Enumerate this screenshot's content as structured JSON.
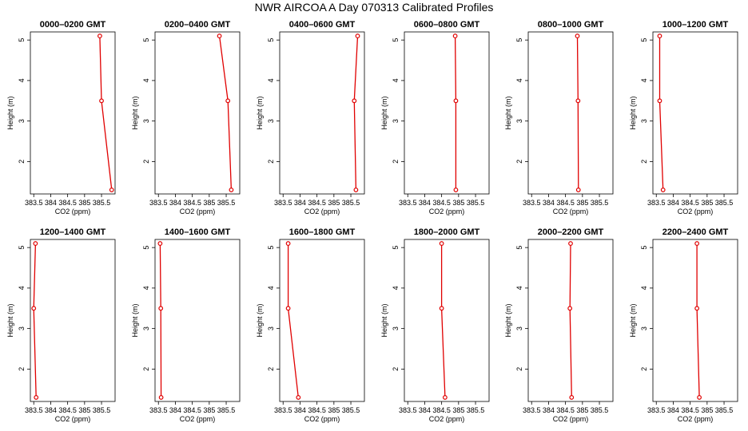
{
  "title": "NWR AIRCOA A  Day 070313  Calibrated Profiles",
  "colors": {
    "series": "#e00000",
    "axis": "#000000"
  },
  "chart_data": {
    "type": "line",
    "xlabel": "CO2 (ppm)",
    "ylabel": "Height (m)",
    "xlim": [
      383.4,
      385.9
    ],
    "ylim": [
      1.2,
      5.2
    ],
    "xticks": [
      "383.5",
      "384",
      "384.5",
      "385",
      "385.5"
    ],
    "yticks": [
      "2",
      "3",
      "4",
      "5"
    ],
    "heights": [
      5.1,
      3.5,
      1.3
    ],
    "grid": false,
    "panels": [
      {
        "title": "0000–0200 GMT",
        "values": [
          385.45,
          385.5,
          385.8
        ]
      },
      {
        "title": "0200–0400 GMT",
        "values": [
          385.3,
          385.55,
          385.65
        ]
      },
      {
        "title": "0400–0600 GMT",
        "values": [
          385.7,
          385.6,
          385.65
        ]
      },
      {
        "title": "0600–0800 GMT",
        "values": [
          384.9,
          384.92,
          384.92
        ]
      },
      {
        "title": "0800–1000 GMT",
        "values": [
          384.85,
          384.87,
          384.88
        ]
      },
      {
        "title": "1000–1200 GMT",
        "values": [
          383.6,
          383.6,
          383.7
        ]
      },
      {
        "title": "1200–1400 GMT",
        "values": [
          383.55,
          383.5,
          383.57
        ]
      },
      {
        "title": "1400–1600 GMT",
        "values": [
          383.55,
          383.57,
          383.58
        ]
      },
      {
        "title": "1600–1800 GMT",
        "values": [
          383.65,
          383.65,
          383.95
        ]
      },
      {
        "title": "1800–2000 GMT",
        "values": [
          384.5,
          384.5,
          384.6
        ]
      },
      {
        "title": "2000–2200 GMT",
        "values": [
          384.65,
          384.63,
          384.68
        ]
      },
      {
        "title": "2200–2400 GMT",
        "values": [
          384.7,
          384.7,
          384.77
        ]
      }
    ]
  }
}
